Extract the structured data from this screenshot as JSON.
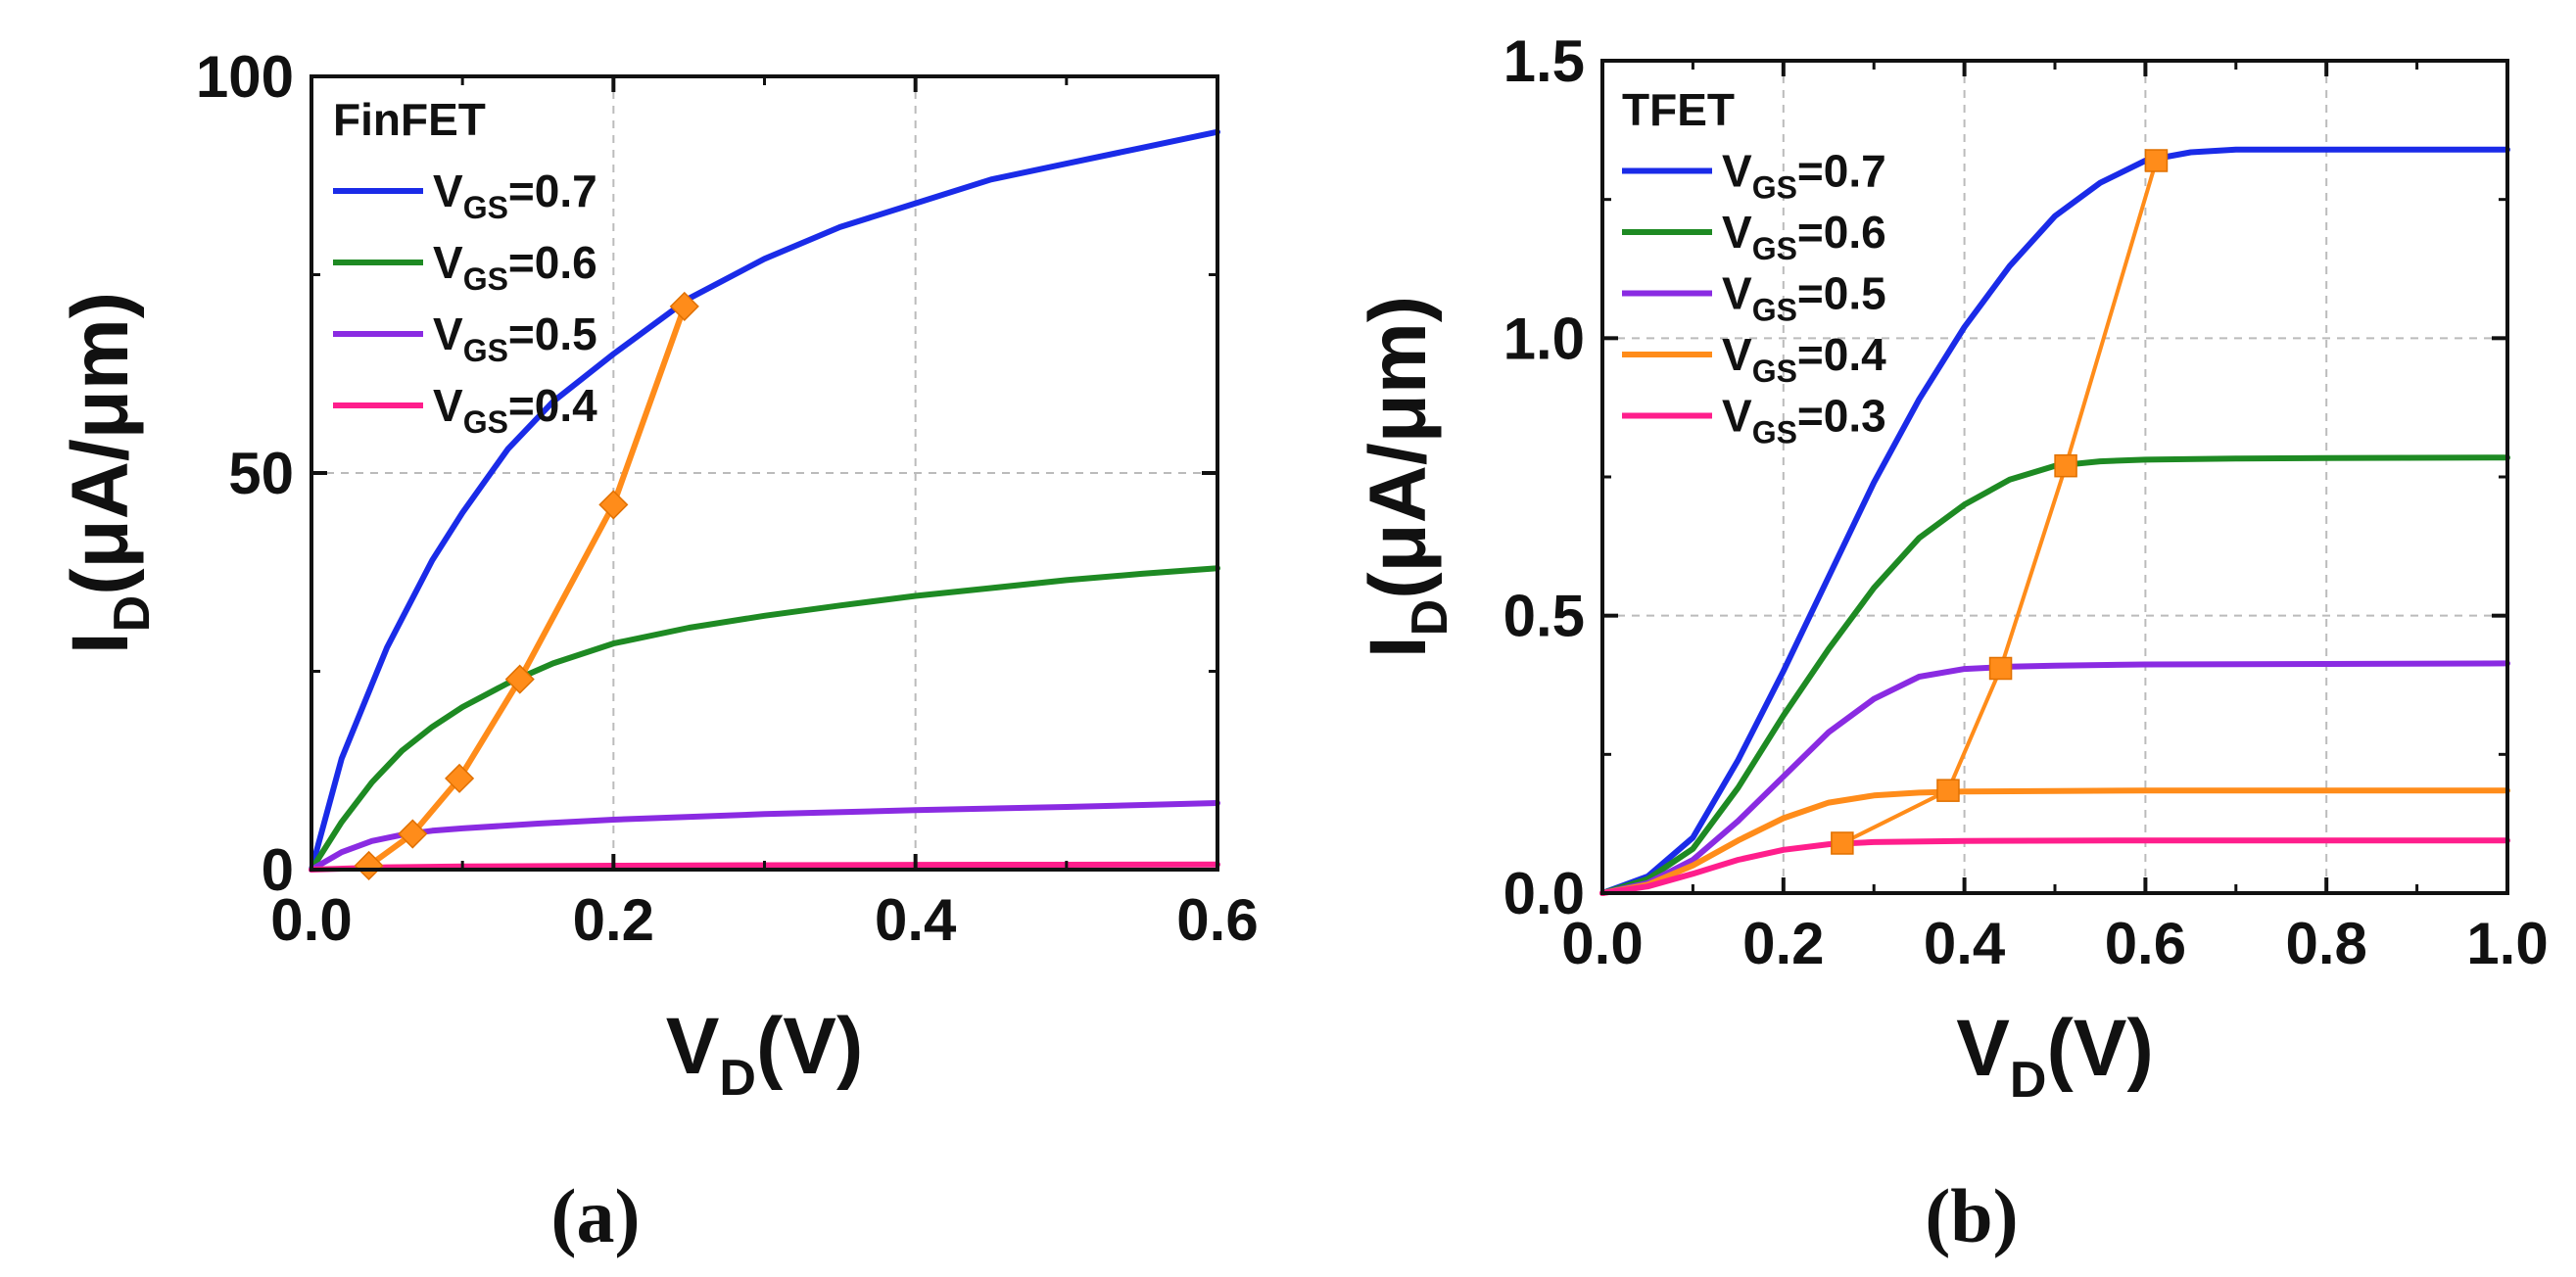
{
  "chart_data": [
    {
      "type": "line",
      "panel_label": "(a)",
      "legend_title": "FinFET",
      "xlabel": {
        "main": "V",
        "sub": "D",
        "unit": "(V)"
      },
      "ylabel": {
        "main": "I",
        "sub": "D",
        "unit": "(μA/μm)"
      },
      "xlim": [
        0,
        0.6
      ],
      "ylim": [
        0,
        100
      ],
      "xticks": [
        0.0,
        0.2,
        0.4,
        0.6
      ],
      "xtick_labels": [
        "0.0",
        "0.2",
        "0.4",
        "0.6"
      ],
      "yticks": [
        0,
        50,
        100
      ],
      "ytick_labels": [
        "0",
        "50",
        "100"
      ],
      "grid": true,
      "legend_position": "top-left",
      "series": [
        {
          "name": "V_GS=0.7",
          "label_main": "V",
          "label_sub": "GS",
          "label_value": "=0.7",
          "color": "#1a2be8",
          "x": [
            0,
            0.02,
            0.05,
            0.08,
            0.1,
            0.13,
            0.16,
            0.2,
            0.25,
            0.3,
            0.35,
            0.4,
            0.45,
            0.5,
            0.55,
            0.6
          ],
          "y": [
            0,
            14,
            28,
            39,
            45,
            53,
            59,
            65,
            72,
            77,
            81,
            84,
            87,
            89,
            91,
            93
          ]
        },
        {
          "name": "V_GS=0.6",
          "label_main": "V",
          "label_sub": "GS",
          "label_value": "=0.6",
          "color": "#1e8a23",
          "x": [
            0,
            0.02,
            0.04,
            0.06,
            0.08,
            0.1,
            0.13,
            0.16,
            0.2,
            0.25,
            0.3,
            0.35,
            0.4,
            0.45,
            0.5,
            0.55,
            0.6
          ],
          "y": [
            0,
            6,
            11,
            15,
            18,
            20.5,
            23.5,
            26,
            28.5,
            30.5,
            32,
            33.3,
            34.5,
            35.5,
            36.5,
            37.3,
            38
          ]
        },
        {
          "name": "V_GS=0.5",
          "label_main": "V",
          "label_sub": "GS",
          "label_value": "=0.5",
          "color": "#8a2be2",
          "x": [
            0,
            0.02,
            0.04,
            0.06,
            0.08,
            0.1,
            0.15,
            0.2,
            0.3,
            0.4,
            0.5,
            0.6
          ],
          "y": [
            0,
            2.2,
            3.6,
            4.4,
            4.9,
            5.2,
            5.8,
            6.3,
            7,
            7.5,
            7.9,
            8.4
          ]
        },
        {
          "name": "V_GS=0.4",
          "label_main": "V",
          "label_sub": "GS",
          "label_value": "=0.4",
          "color": "#ff1e8c",
          "x": [
            0,
            0.05,
            0.1,
            0.2,
            0.3,
            0.4,
            0.5,
            0.6
          ],
          "y": [
            0,
            0.3,
            0.4,
            0.5,
            0.55,
            0.6,
            0.62,
            0.65
          ]
        }
      ],
      "marker_series": {
        "color": "#ff8c1a",
        "marker": "diamond",
        "x": [
          0.038,
          0.067,
          0.098,
          0.138,
          0.2,
          0.247
        ],
        "y": [
          0.5,
          4.5,
          11.5,
          24,
          46,
          71
        ]
      }
    },
    {
      "type": "line",
      "panel_label": "(b)",
      "legend_title": "TFET",
      "xlabel": {
        "main": "V",
        "sub": "D",
        "unit": "(V)"
      },
      "ylabel": {
        "main": "I",
        "sub": "D",
        "unit": "(μA/μm)"
      },
      "xlim": [
        0,
        1.0
      ],
      "ylim": [
        0,
        1.5
      ],
      "xticks": [
        0.0,
        0.2,
        0.4,
        0.6,
        0.8,
        1.0
      ],
      "xtick_labels": [
        "0.0",
        "0.2",
        "0.4",
        "0.6",
        "0.8",
        "1.0"
      ],
      "yticks": [
        0.0,
        0.5,
        1.0,
        1.5
      ],
      "ytick_labels": [
        "0.0",
        "0.5",
        "1.0",
        "1.5"
      ],
      "grid": true,
      "legend_position": "top-left",
      "series": [
        {
          "name": "V_GS=0.7",
          "label_main": "V",
          "label_sub": "GS",
          "label_value": "=0.7",
          "color": "#1a2be8",
          "x": [
            0,
            0.05,
            0.1,
            0.15,
            0.2,
            0.25,
            0.3,
            0.35,
            0.4,
            0.45,
            0.5,
            0.55,
            0.6,
            0.65,
            0.7,
            0.8,
            0.9,
            1.0
          ],
          "y": [
            0,
            0.03,
            0.1,
            0.24,
            0.4,
            0.57,
            0.74,
            0.89,
            1.02,
            1.13,
            1.22,
            1.28,
            1.32,
            1.335,
            1.34,
            1.34,
            1.34,
            1.34
          ]
        },
        {
          "name": "V_GS=0.6",
          "label_main": "V",
          "label_sub": "GS",
          "label_value": "=0.6",
          "color": "#1e8a23",
          "x": [
            0,
            0.05,
            0.1,
            0.15,
            0.2,
            0.25,
            0.3,
            0.35,
            0.4,
            0.45,
            0.5,
            0.55,
            0.6,
            0.7,
            0.8,
            1.0
          ],
          "y": [
            0,
            0.025,
            0.08,
            0.19,
            0.32,
            0.44,
            0.55,
            0.64,
            0.7,
            0.745,
            0.77,
            0.778,
            0.781,
            0.783,
            0.784,
            0.785
          ]
        },
        {
          "name": "V_GS=0.5",
          "label_main": "V",
          "label_sub": "GS",
          "label_value": "=0.5",
          "color": "#8a2be2",
          "x": [
            0,
            0.05,
            0.1,
            0.15,
            0.2,
            0.25,
            0.3,
            0.35,
            0.4,
            0.45,
            0.5,
            0.6,
            0.8,
            1.0
          ],
          "y": [
            0,
            0.018,
            0.06,
            0.13,
            0.21,
            0.29,
            0.35,
            0.39,
            0.404,
            0.408,
            0.41,
            0.412,
            0.413,
            0.414
          ]
        },
        {
          "name": "V_GS=0.4",
          "label_main": "V",
          "label_sub": "GS",
          "label_value": "=0.4",
          "color": "#ff8c1a",
          "x": [
            0,
            0.05,
            0.1,
            0.15,
            0.2,
            0.25,
            0.3,
            0.35,
            0.4,
            0.5,
            0.6,
            0.8,
            1.0
          ],
          "y": [
            0,
            0.015,
            0.05,
            0.095,
            0.135,
            0.163,
            0.176,
            0.181,
            0.183,
            0.184,
            0.185,
            0.185,
            0.185
          ]
        },
        {
          "name": "V_GS=0.3",
          "label_main": "V",
          "label_sub": "GS",
          "label_value": "=0.3",
          "color": "#ff1e8c",
          "x": [
            0,
            0.05,
            0.1,
            0.15,
            0.2,
            0.25,
            0.3,
            0.4,
            0.6,
            0.8,
            1.0
          ],
          "y": [
            0,
            0.012,
            0.035,
            0.06,
            0.078,
            0.088,
            0.092,
            0.094,
            0.095,
            0.095,
            0.095
          ]
        }
      ],
      "marker_series": {
        "color": "#ff8c1a",
        "marker": "square",
        "x": [
          0.265,
          0.382,
          0.44,
          0.512,
          0.612
        ],
        "y": [
          0.09,
          0.185,
          0.405,
          0.77,
          1.32
        ]
      }
    }
  ]
}
